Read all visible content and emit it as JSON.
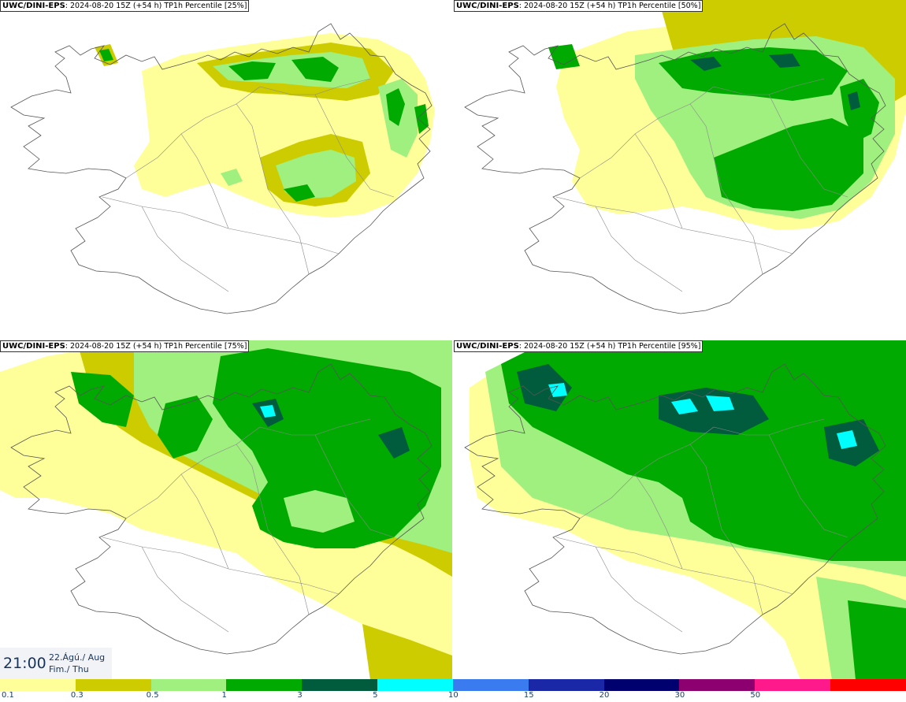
{
  "panels": [
    {
      "model": "UWC/DINI-EPS",
      "run": ": 2024-08-20 15Z (+54 h)",
      "product": "TP1h Percentile [25%]"
    },
    {
      "model": "UWC/DINI-EPS",
      "run": ": 2024-08-20 15Z (+54 h)",
      "product": "TP1h Percentile [50%]"
    },
    {
      "model": "UWC/DINI-EPS",
      "run": ": 2024-08-20 15Z (+54 h)",
      "product": "TP1h Percentile [75%]"
    },
    {
      "model": "UWC/DINI-EPS",
      "run": ": 2024-08-20 15Z (+54 h)",
      "product": "TP1h Percentile [95%]"
    }
  ],
  "valid_time": {
    "time": "21:00",
    "date_line1": "22.Ágú./ Aug",
    "date_line2": "Fim./ Thu"
  },
  "legend": {
    "colors": [
      "#ffff9a",
      "#cccc00",
      "#a0f080",
      "#00aa00",
      "#005c3c",
      "#00ffff",
      "#3a7cf0",
      "#1a28a8",
      "#00006e",
      "#8c0070",
      "#ff1a8c",
      "#ff0000"
    ],
    "ticks": [
      "0.1",
      "0.3",
      "0.5",
      "1",
      "3",
      "5",
      "10",
      "15",
      "20",
      "30",
      "50"
    ]
  },
  "map_colors": {
    "land_outline": "#555555",
    "sea": "#ffffff"
  }
}
